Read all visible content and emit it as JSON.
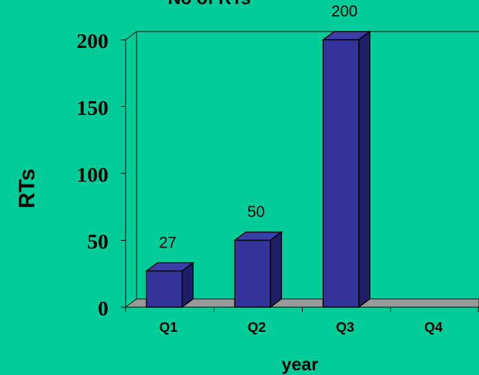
{
  "chart_data": {
    "type": "bar",
    "title": "No of RTs",
    "xlabel": "year",
    "ylabel": "RTs",
    "categories": [
      "Q1",
      "Q2",
      "Q3",
      "Q4"
    ],
    "values": [
      27,
      50,
      200,
      null
    ],
    "data_labels": [
      "27",
      "50",
      "200",
      ""
    ],
    "ylim": [
      0,
      200
    ],
    "yticks": [
      "0",
      "50",
      "100",
      "150",
      "200"
    ],
    "grid": false,
    "legend": "none",
    "style": "3d-column"
  },
  "colors": {
    "background": "#00CC99",
    "bar_front": "#333399",
    "bar_top": "#3D3DA8",
    "bar_side": "#1F1F66",
    "floor": "#999999",
    "axis": "#000000"
  }
}
